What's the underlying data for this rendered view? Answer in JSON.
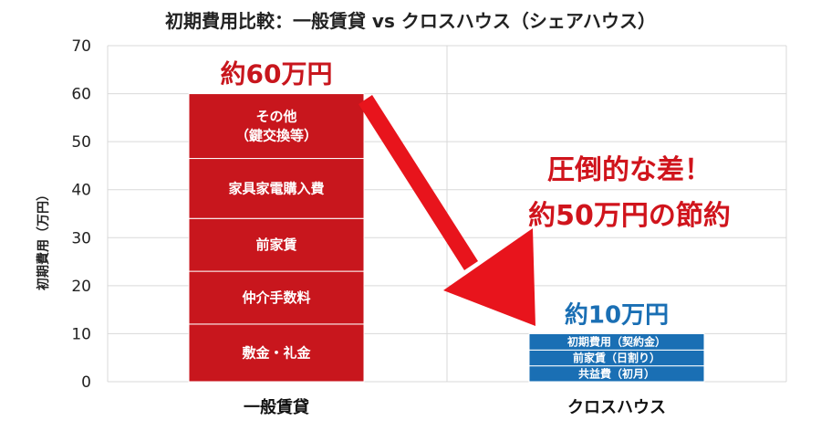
{
  "chart_data": {
    "type": "bar",
    "stacked": true,
    "title": "初期費用比較：一般賃貸 vs クロスハウス（シェアハウス）",
    "ylabel": "初期費用（万円）",
    "xlabel": "",
    "ylim": [
      0,
      70
    ],
    "yticks": [
      0,
      10,
      20,
      30,
      40,
      50,
      60,
      70
    ],
    "grid": true,
    "categories": [
      "一般賃貸",
      "クロスハウス"
    ],
    "stacks": [
      {
        "category": "一般賃貸",
        "color": "#c8161d",
        "total_label": "約60万円",
        "segments": [
          {
            "label": "敷金・礼金",
            "value": 12
          },
          {
            "label": "仲介手数料",
            "value": 11
          },
          {
            "label": "前家賃",
            "value": 11
          },
          {
            "label": "家具家電購入費",
            "value": 12.5
          },
          {
            "label": "その他\n（鍵交換等）",
            "value": 13.5
          }
        ]
      },
      {
        "category": "クロスハウス",
        "color": "#1a6fb4",
        "total_label": "約10万円",
        "segments": [
          {
            "label": "共益費（初月）",
            "value": 3.3
          },
          {
            "label": "前家賃（日割り）",
            "value": 3.3
          },
          {
            "label": "初期費用（契約金）",
            "value": 3.4
          }
        ]
      }
    ],
    "annotation": {
      "lines": [
        "圧倒的な差！",
        "約50万円の節約"
      ],
      "arrow_color": "#e8141c"
    }
  }
}
